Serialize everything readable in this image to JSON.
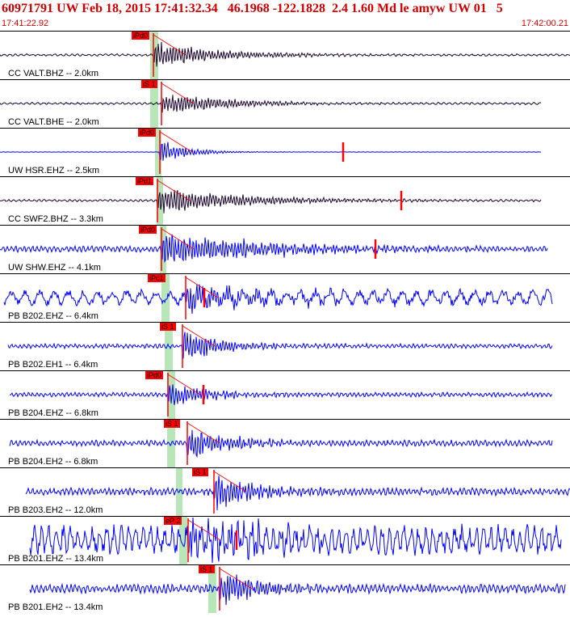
{
  "header": {
    "title": "60971791 UW Feb 18, 2015 17:41:32.34   46.1968 -122.1828  2.4 1.60 Md le amyw UW 01   5",
    "start_time": "17:41:22.92",
    "end_time": "17:42:00.21"
  },
  "colors": {
    "title": "#d00000",
    "trace_dark": "#1a0530",
    "trace_blue": "#0000ff",
    "pick": "#ff0000",
    "theoretical_band": "#b8e6b8"
  },
  "traces": [
    {
      "label": "CC VALT.BHZ -- 2.0km",
      "pick": "iPd0",
      "color": "dark"
    },
    {
      "label": "CC VALT.BHE -- 2.0km",
      "pick": "iS 1",
      "color": "dark"
    },
    {
      "label": "UW HSR.EHZ -- 2.5km",
      "pick": "iPd0",
      "color": "blue"
    },
    {
      "label": "CC SWF2.BHZ -- 3.3km",
      "pick": "iPd1",
      "color": "dark"
    },
    {
      "label": "UW SHW.EHZ -- 4.1km",
      "pick": "iPd0",
      "color": "blue"
    },
    {
      "label": "PB B202.EHZ -- 6.4km",
      "pick": "iPc1",
      "color": "blue"
    },
    {
      "label": "PB B202.EH1 -- 6.4km",
      "pick": "iS 1",
      "color": "blue"
    },
    {
      "label": "PB B204.EHZ -- 6.8km",
      "pick": "iPd0",
      "color": "blue"
    },
    {
      "label": "PB B204.EH2 -- 6.8km",
      "pick": "iS 1",
      "color": "blue"
    },
    {
      "label": "PB B203.EH2 -- 12.0km",
      "pick": "iS 1",
      "color": "blue"
    },
    {
      "label": "PB B201.EHZ -- 13.4km",
      "pick": "eP 2",
      "color": "blue"
    },
    {
      "label": "PB B201.EH2 -- 13.4km",
      "pick": "iS 1",
      "color": "blue"
    }
  ]
}
